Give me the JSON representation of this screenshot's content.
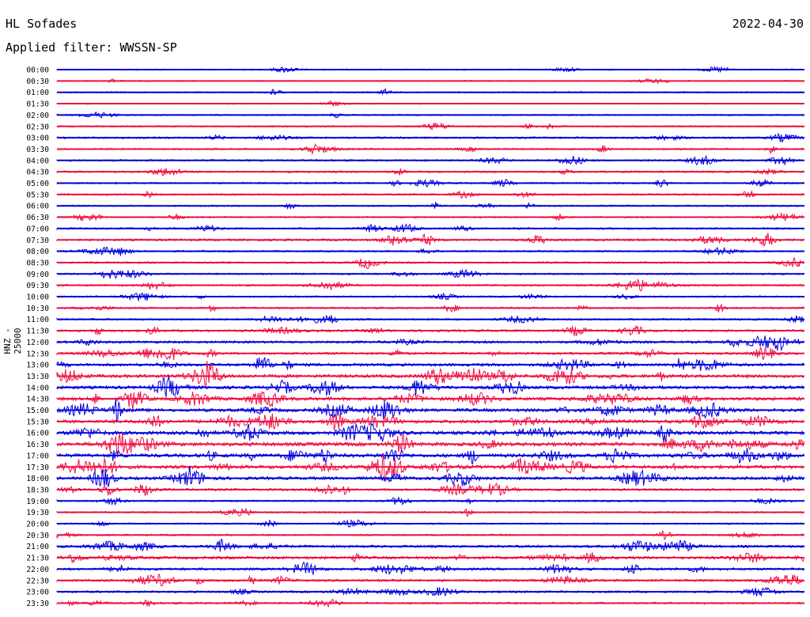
{
  "header": {
    "station": "HL Sofades",
    "date": "2022-04-30",
    "filter": "Applied filter: WWSSN-SP"
  },
  "chart_data": {
    "type": "line",
    "title": "HL Sofades",
    "subtitle": "Applied filter: WWSSN-SP",
    "ylabel": "HNZ - 25000",
    "row_labels": [
      "00:00",
      "00:30",
      "01:00",
      "01:30",
      "02:00",
      "02:30",
      "03:00",
      "03:30",
      "04:00",
      "04:30",
      "05:00",
      "05:30",
      "06:00",
      "06:30",
      "07:00",
      "07:30",
      "08:00",
      "08:30",
      "09:00",
      "09:30",
      "10:00",
      "10:30",
      "11:00",
      "11:30",
      "12:00",
      "12:30",
      "13:00",
      "13:30",
      "14:00",
      "14:30",
      "15:00",
      "15:30",
      "16:00",
      "16:30",
      "17:00",
      "17:30",
      "18:00",
      "18:30",
      "19:00",
      "19:30",
      "20:00",
      "20:30",
      "21:00",
      "21:30",
      "22:00",
      "22:30",
      "23:00",
      "23:30"
    ],
    "row_activity": [
      0.2,
      0.2,
      0.3,
      0.15,
      0.3,
      0.4,
      0.6,
      0.5,
      0.6,
      0.6,
      0.5,
      0.55,
      0.4,
      0.45,
      0.6,
      0.8,
      0.5,
      0.6,
      0.5,
      0.6,
      0.45,
      0.6,
      0.6,
      0.9,
      1.0,
      1.0,
      1.3,
      1.6,
      1.5,
      1.6,
      1.6,
      1.7,
      1.8,
      1.9,
      1.8,
      1.7,
      1.4,
      0.9,
      0.5,
      0.5,
      0.4,
      0.5,
      1.0,
      1.3,
      1.0,
      0.9,
      0.8,
      0.7
    ],
    "colors": [
      "#0000dd",
      "#ee1144"
    ]
  }
}
